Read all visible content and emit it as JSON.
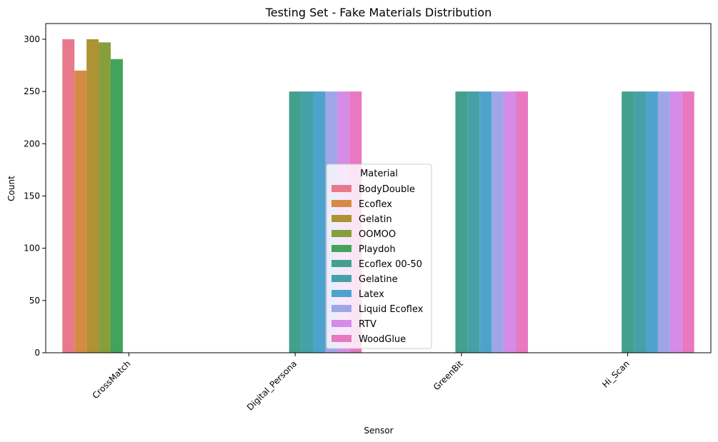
{
  "chart_data": {
    "type": "bar",
    "title": "Testing Set - Fake Materials Distribution",
    "xlabel": "Sensor",
    "ylabel": "Count",
    "categories": [
      "CrossMatch",
      "Digital_Persona",
      "GreenBit",
      "Hi_Scan"
    ],
    "ylim": [
      0,
      315
    ],
    "yticks": [
      0,
      50,
      100,
      150,
      200,
      250,
      300
    ],
    "grid": false,
    "legend": {
      "title": "Material",
      "placement": "center-bottom"
    },
    "series": [
      {
        "name": "BodyDouble",
        "color": "#e8798d",
        "values": [
          300,
          null,
          null,
          null
        ]
      },
      {
        "name": "Ecoflex",
        "color": "#d58b45",
        "values": [
          270,
          null,
          null,
          null
        ]
      },
      {
        "name": "Gelatin",
        "color": "#ae9233",
        "values": [
          300,
          null,
          null,
          null
        ]
      },
      {
        "name": "OOMOO",
        "color": "#869f3c",
        "values": [
          297,
          null,
          null,
          null
        ]
      },
      {
        "name": "Playdoh",
        "color": "#43a35b",
        "values": [
          281,
          null,
          null,
          null
        ]
      },
      {
        "name": "Ecoflex 00-50",
        "color": "#43a08c",
        "values": [
          null,
          250,
          250,
          250
        ]
      },
      {
        "name": "Gelatine",
        "color": "#45a1a8",
        "values": [
          null,
          250,
          250,
          250
        ]
      },
      {
        "name": "Latex",
        "color": "#4ea3cc",
        "values": [
          null,
          250,
          250,
          250
        ]
      },
      {
        "name": "Liquid Ecoflex",
        "color": "#9ea6e8",
        "values": [
          null,
          250,
          250,
          250
        ]
      },
      {
        "name": "RTV",
        "color": "#d58be8",
        "values": [
          null,
          250,
          250,
          250
        ]
      },
      {
        "name": "WoodGlue",
        "color": "#e878c2",
        "values": [
          null,
          250,
          250,
          250
        ]
      }
    ]
  }
}
